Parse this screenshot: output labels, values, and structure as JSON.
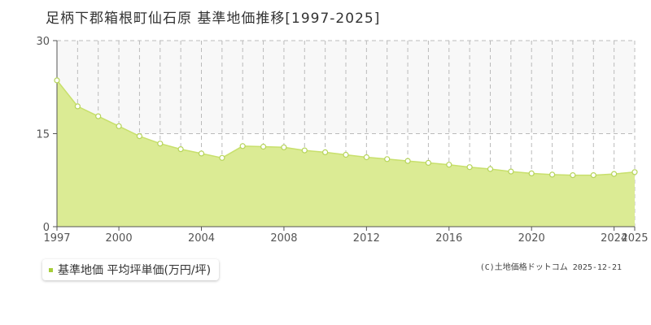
{
  "title": "足柄下郡箱根町仙石原 基準地価推移[1997-2025]",
  "legend_label": "基準地価 平均坪単価(万円/坪)",
  "copyright": "(C)土地価格ドットコム 2025-12-21",
  "colors": {
    "fill": "#dbeb94",
    "line": "#c8e06c",
    "marker_fill": "#ffffff",
    "marker_stroke": "#b6d45a",
    "grid": "#bbbbbb",
    "axis": "#555555",
    "upper_band": "#f8f8f8",
    "legend_swatch": "#a6ce39"
  },
  "chart_data": {
    "type": "area",
    "x": [
      1997,
      1998,
      1999,
      2000,
      2001,
      2002,
      2003,
      2004,
      2005,
      2006,
      2007,
      2008,
      2009,
      2010,
      2011,
      2012,
      2013,
      2014,
      2015,
      2016,
      2017,
      2018,
      2019,
      2020,
      2021,
      2022,
      2023,
      2024,
      2025
    ],
    "series": [
      {
        "name": "基準地価 平均坪単価(万円/坪)",
        "values": [
          23.6,
          19.4,
          17.8,
          16.2,
          14.6,
          13.4,
          12.5,
          11.8,
          11.1,
          13.0,
          12.9,
          12.8,
          12.3,
          12.0,
          11.6,
          11.2,
          10.9,
          10.6,
          10.3,
          10.0,
          9.6,
          9.3,
          8.9,
          8.6,
          8.4,
          8.3,
          8.3,
          8.5,
          8.8
        ]
      }
    ],
    "xlim": [
      1997,
      2025
    ],
    "ylim": [
      0,
      30
    ],
    "yticks": [
      0,
      15,
      30
    ],
    "xtick_labels": [
      "1997",
      "2000",
      "2004",
      "2008",
      "2012",
      "2016",
      "2020",
      "2024",
      "2025"
    ],
    "grid": true,
    "legend_position": "bottom-left"
  }
}
